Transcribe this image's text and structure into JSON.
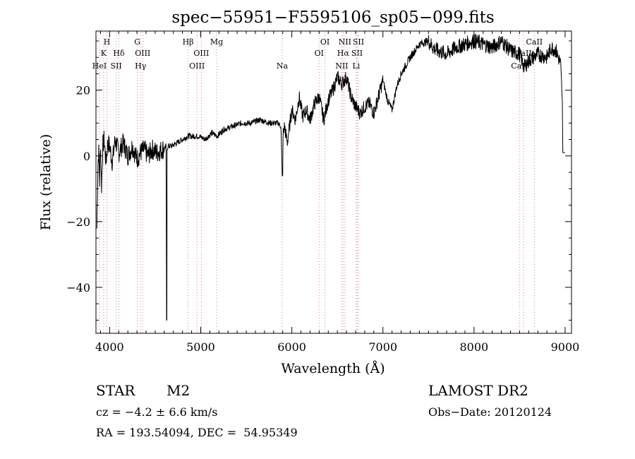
{
  "chart_data": {
    "type": "line",
    "title": "spec−55951−F5595106_sp05−099.fits",
    "xlabel": "Wavelength (Å)",
    "ylabel": "Flux (relative)",
    "xlim": [
      3850,
      9070
    ],
    "ylim": [
      -54,
      38
    ],
    "xticks": [
      4000,
      5000,
      6000,
      7000,
      8000,
      9000
    ],
    "yticks": [
      -40,
      -20,
      0,
      20
    ],
    "tick_labels_x": [
      "4000",
      "5000",
      "6000",
      "7000",
      "8000",
      "9000"
    ],
    "tick_labels_y": [
      "−40",
      "−20",
      "0",
      "20"
    ],
    "grid": false,
    "series": [
      {
        "x": [
          3860,
          3870,
          3880,
          3890,
          3900,
          3910,
          3925,
          3940,
          3960,
          3980,
          4000,
          4030,
          4060,
          4100,
          4150,
          4200,
          4250,
          4300,
          4340,
          4380,
          4420,
          4470,
          4520,
          4580,
          4620,
          4625,
          4630,
          4640,
          4680,
          4740,
          4800,
          4860,
          4920,
          4980,
          5050,
          5120,
          5180,
          5250,
          5350,
          5450,
          5550,
          5650,
          5750,
          5850,
          5880,
          5895,
          5905,
          5920,
          5950,
          6000,
          6040,
          6080,
          6120,
          6160,
          6200,
          6250,
          6300,
          6350,
          6400,
          6450,
          6500,
          6550,
          6600,
          6650,
          6700,
          6750,
          6800,
          6850,
          6900,
          6950,
          7000,
          7050,
          7100,
          7150,
          7200,
          7300,
          7400,
          7500,
          7550,
          7600,
          7700,
          7800,
          7900,
          8000,
          8100,
          8200,
          8300,
          8400,
          8500,
          8550,
          8600,
          8700,
          8800,
          8850,
          8900,
          8950,
          8970,
          8975,
          9000
        ],
        "y": [
          -22,
          -4,
          2,
          -8,
          5,
          -10,
          3,
          5,
          -2,
          4,
          3,
          -2,
          5,
          1,
          4,
          0,
          3,
          -1,
          1,
          2,
          0,
          2,
          1,
          2,
          3,
          -50,
          2,
          3,
          3,
          4,
          5,
          6,
          6,
          6,
          5,
          7,
          6,
          8,
          9,
          10,
          10,
          11,
          10,
          10,
          9,
          -6,
          7,
          9,
          4,
          14,
          11,
          18,
          12,
          14,
          11,
          16,
          18,
          11,
          17,
          20,
          24,
          22,
          24,
          18,
          15,
          13,
          15,
          16,
          13,
          18,
          23,
          17,
          14,
          21,
          25,
          30,
          34,
          35,
          33,
          32,
          31,
          33,
          34,
          35,
          34,
          33,
          35,
          32,
          31,
          27,
          29,
          31,
          30,
          33,
          32,
          28,
          16,
          1,
          1
        ]
      }
    ],
    "lines": [
      {
        "x": 3889,
        "label": "HeI",
        "row": 3
      },
      {
        "x": 3934,
        "label": "K",
        "row": 2
      },
      {
        "x": 3970,
        "label": "H",
        "row": 1
      },
      {
        "x": 4072,
        "label": "SII",
        "row": 3
      },
      {
        "x": 4102,
        "label": "Hδ",
        "row": 2
      },
      {
        "x": 4304,
        "label": "G",
        "row": 1
      },
      {
        "x": 4340,
        "label": "Hγ",
        "row": 3
      },
      {
        "x": 4363,
        "label": "OIII",
        "row": 2
      },
      {
        "x": 4861,
        "label": "Hβ",
        "row": 1
      },
      {
        "x": 4959,
        "label": "OIII",
        "row": 3
      },
      {
        "x": 5007,
        "label": "OIII",
        "row": 2
      },
      {
        "x": 5175,
        "label": "Mg",
        "row": 1
      },
      {
        "x": 5894,
        "label": "Na",
        "row": 3
      },
      {
        "x": 6300,
        "label": "OI",
        "row": 2
      },
      {
        "x": 6364,
        "label": "OI",
        "row": 1
      },
      {
        "x": 6548,
        "label": "NII",
        "row": 3
      },
      {
        "x": 6563,
        "label": "Hα",
        "row": 2
      },
      {
        "x": 6583,
        "label": "NII",
        "row": 1
      },
      {
        "x": 6707,
        "label": "Li",
        "row": 3
      },
      {
        "x": 6716,
        "label": "SII",
        "row": 2
      },
      {
        "x": 6731,
        "label": "SII",
        "row": 1
      },
      {
        "x": 8498,
        "label": "CaII",
        "row": 3
      },
      {
        "x": 8542,
        "label": "CaII",
        "row": 2
      },
      {
        "x": 8662,
        "label": "CaII",
        "row": 1
      }
    ]
  },
  "info": {
    "class": "STAR",
    "subclass": "M2",
    "survey": "LAMOST DR2",
    "cz": "cz = −4.2 ± 6.6 km/s",
    "obs_date": "Obs−Date: 20120124",
    "radec": "RA = 193.54094, DEC =  54.95349"
  }
}
